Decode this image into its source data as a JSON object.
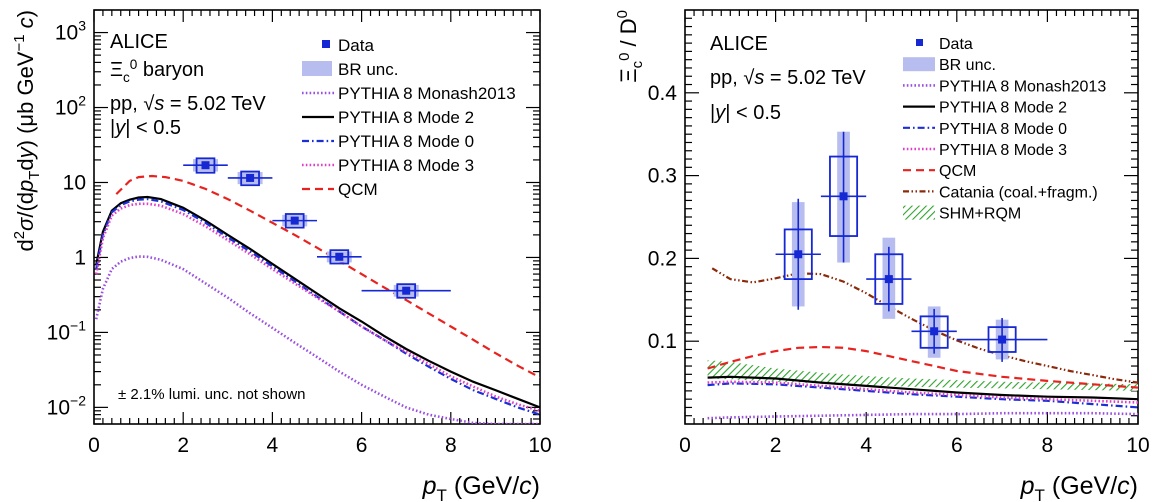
{
  "chart_data": [
    {
      "type": "scatter",
      "log_y": true,
      "xlim": [
        0,
        10
      ],
      "ylim": [
        0.006,
        2000
      ],
      "x_ticks": [
        0,
        2,
        4,
        6,
        8,
        10
      ],
      "y_ticks": [
        {
          "value": 0.01,
          "base": "10",
          "exp": "−2"
        },
        {
          "value": 0.1,
          "base": "10",
          "exp": "−1"
        },
        {
          "value": 1,
          "base": "1",
          "exp": ""
        },
        {
          "value": 10,
          "base": "10",
          "exp": ""
        },
        {
          "value": 100,
          "base": "10",
          "exp": "2"
        },
        {
          "value": 1000,
          "base": "10",
          "exp": "3"
        }
      ],
      "xlabel": "p_T (GeV/c)",
      "ylabel": "d²σ/(dp_T dy) (μb GeV⁻¹ c)",
      "info_lines": [
        "ALICE",
        "Ξc0 baryon",
        "pp, √s = 5.02 TeV",
        "|y| < 0.5"
      ],
      "note": "± 2.1% lumi. unc. not shown",
      "legend": [
        "Data",
        "BR unc.",
        "PYTHIA 8 Monash2013",
        "PYTHIA 8 Mode 2",
        "PYTHIA 8 Mode 0",
        "PYTHIA 8 Mode 3",
        "QCM"
      ],
      "legend_position": "top-right",
      "data_points": {
        "x": [
          2.5,
          3.5,
          4.5,
          5.5,
          7.0
        ],
        "x_err": [
          0.5,
          0.5,
          0.5,
          0.5,
          1.0
        ],
        "y": [
          17,
          11.5,
          3.1,
          1.02,
          0.36
        ],
        "syst_low": [
          13.5,
          9.2,
          2.5,
          0.83,
          0.29
        ],
        "syst_high": [
          21,
          14,
          3.8,
          1.25,
          0.44
        ],
        "br_low": [
          14,
          9.5,
          2.6,
          0.86,
          0.3
        ],
        "br_high": [
          20.5,
          13.8,
          3.7,
          1.2,
          0.43
        ]
      },
      "series": [
        {
          "name": "QCM",
          "color": "#e8221f",
          "style": "dashed",
          "x": [
            0.5,
            0.8,
            1.0,
            1.3,
            1.6,
            2.0,
            2.5,
            3.0,
            3.5,
            4.0,
            4.5,
            5.0,
            5.5,
            6.0,
            6.5,
            7.0,
            7.5,
            8.0,
            8.5,
            9.0,
            9.5,
            10.0
          ],
          "y": [
            7,
            10.5,
            11.8,
            12.2,
            11.8,
            10.5,
            8.2,
            6.0,
            4.2,
            2.9,
            2.0,
            1.35,
            0.9,
            0.6,
            0.4,
            0.27,
            0.18,
            0.12,
            0.08,
            0.053,
            0.036,
            0.025
          ]
        },
        {
          "name": "PYTHIA 8 Mode 2",
          "color": "#000000",
          "style": "solid",
          "x": [
            0.05,
            0.2,
            0.4,
            0.6,
            0.8,
            1.0,
            1.2,
            1.5,
            2.0,
            2.5,
            3.0,
            3.5,
            4.0,
            4.5,
            5.0,
            5.5,
            6.0,
            6.5,
            7.0,
            7.5,
            8.0,
            8.5,
            9.0,
            9.5,
            10.0
          ],
          "y": [
            0.8,
            2.2,
            4.2,
            5.3,
            5.9,
            6.3,
            6.4,
            6.0,
            4.6,
            3.1,
            2.0,
            1.3,
            0.82,
            0.52,
            0.33,
            0.21,
            0.14,
            0.09,
            0.06,
            0.042,
            0.03,
            0.022,
            0.017,
            0.013,
            0.01
          ]
        },
        {
          "name": "PYTHIA 8 Mode 0",
          "color": "#1a2fd6",
          "style": "dashdot",
          "x": [
            0.05,
            0.2,
            0.4,
            0.6,
            0.8,
            1.0,
            1.2,
            1.5,
            2.0,
            2.5,
            3.0,
            3.5,
            4.0,
            4.5,
            5.0,
            5.5,
            6.0,
            6.5,
            7.0,
            7.5,
            8.0,
            8.5,
            9.0,
            9.5,
            10.0
          ],
          "y": [
            0.7,
            2.0,
            4.0,
            5.0,
            5.6,
            5.9,
            6.0,
            5.6,
            4.3,
            2.9,
            1.85,
            1.2,
            0.76,
            0.48,
            0.3,
            0.19,
            0.12,
            0.08,
            0.052,
            0.035,
            0.024,
            0.017,
            0.013,
            0.01,
            0.008
          ]
        },
        {
          "name": "PYTHIA 8 Mode 3",
          "color": "#e040c8",
          "style": "dotted",
          "x": [
            0.05,
            0.2,
            0.4,
            0.6,
            0.8,
            1.0,
            1.2,
            1.5,
            2.0,
            2.5,
            3.0,
            3.5,
            4.0,
            4.5,
            5.0,
            5.5,
            6.0,
            6.5,
            7.0,
            7.5,
            8.0,
            8.5,
            9.0,
            9.5,
            10.0
          ],
          "y": [
            0.6,
            1.8,
            3.6,
            4.5,
            5.0,
            5.2,
            5.2,
            4.9,
            3.8,
            2.6,
            1.7,
            1.1,
            0.7,
            0.45,
            0.29,
            0.19,
            0.12,
            0.08,
            0.055,
            0.038,
            0.026,
            0.019,
            0.014,
            0.011,
            0.009
          ]
        },
        {
          "name": "PYTHIA 8 Monash2013",
          "color": "#9b50e0",
          "style": "dotted",
          "x": [
            0.05,
            0.2,
            0.4,
            0.6,
            0.8,
            1.0,
            1.2,
            1.5,
            2.0,
            2.5,
            3.0,
            3.5,
            4.0,
            4.5,
            5.0,
            5.5,
            6.0,
            6.5,
            7.0,
            7.5,
            8.0,
            8.5,
            9.0,
            9.5,
            10.0
          ],
          "y": [
            0.15,
            0.38,
            0.7,
            0.88,
            0.98,
            1.03,
            1.02,
            0.93,
            0.7,
            0.45,
            0.29,
            0.18,
            0.115,
            0.073,
            0.047,
            0.03,
            0.02,
            0.014,
            0.01,
            0.008,
            0.007,
            0.0062,
            0.006,
            0.006,
            0.006
          ]
        }
      ]
    },
    {
      "type": "scatter",
      "log_y": false,
      "xlim": [
        0,
        10
      ],
      "ylim": [
        0,
        0.5
      ],
      "x_ticks": [
        0,
        2,
        4,
        6,
        8,
        10
      ],
      "y_ticks": [
        0.1,
        0.2,
        0.3,
        0.4
      ],
      "xlabel": "p_T (GeV/c)",
      "ylabel": "Ξc0 / D0",
      "info_lines": [
        "ALICE",
        "pp, √s = 5.02 TeV",
        "|y| < 0.5"
      ],
      "legend": [
        "Data",
        "BR unc.",
        "PYTHIA 8 Monash2013",
        "PYTHIA 8 Mode 2",
        "PYTHIA 8 Mode 0",
        "PYTHIA 8 Mode 3",
        "QCM",
        "Catania (coal.+fragm.)",
        "SHM+RQM"
      ],
      "legend_position": "top-right",
      "data_points": {
        "x": [
          2.5,
          3.5,
          4.5,
          5.5,
          7.0
        ],
        "x_err": [
          0.5,
          0.5,
          0.5,
          0.5,
          1.0
        ],
        "y": [
          0.205,
          0.275,
          0.175,
          0.112,
          0.102
        ],
        "stat_low": [
          0.138,
          0.195,
          0.136,
          0.085,
          0.075
        ],
        "stat_high": [
          0.272,
          0.353,
          0.214,
          0.139,
          0.128
        ],
        "syst_low": [
          0.175,
          0.227,
          0.145,
          0.092,
          0.087
        ],
        "syst_high": [
          0.235,
          0.323,
          0.205,
          0.13,
          0.117
        ],
        "br_low": [
          0.142,
          0.195,
          0.127,
          0.08,
          0.078
        ],
        "br_high": [
          0.268,
          0.353,
          0.225,
          0.142,
          0.126
        ]
      },
      "shm_band": {
        "name": "SHM+RQM",
        "color": "#2ca32c",
        "x": [
          0.5,
          1,
          2,
          3,
          4,
          5,
          6,
          7,
          8,
          9,
          10
        ],
        "low": [
          0.055,
          0.054,
          0.051,
          0.049,
          0.047,
          0.045,
          0.044,
          0.043,
          0.042,
          0.041,
          0.04
        ],
        "high": [
          0.077,
          0.075,
          0.067,
          0.062,
          0.058,
          0.055,
          0.053,
          0.051,
          0.05,
          0.049,
          0.048
        ]
      },
      "series": [
        {
          "name": "Catania (coal.+fragm.)",
          "color": "#8b2a0a",
          "style": "dashdotdot",
          "x": [
            0.6,
            1.0,
            1.5,
            2.0,
            2.5,
            3.0,
            3.5,
            4.0,
            4.5,
            5.0,
            5.5,
            6.0,
            6.5,
            7.0,
            7.5,
            8.0,
            8.5,
            9.0,
            9.5,
            10.0
          ],
          "y": [
            0.188,
            0.175,
            0.171,
            0.176,
            0.182,
            0.181,
            0.172,
            0.158,
            0.142,
            0.127,
            0.113,
            0.101,
            0.091,
            0.083,
            0.076,
            0.07,
            0.064,
            0.059,
            0.054,
            0.05
          ]
        },
        {
          "name": "QCM",
          "color": "#e8221f",
          "style": "dashed",
          "x": [
            0.5,
            1.0,
            1.5,
            2.0,
            2.5,
            3.0,
            3.5,
            4.0,
            4.5,
            5.0,
            5.5,
            6.0,
            7.0,
            8.0,
            9.0,
            10.0
          ],
          "y": [
            0.067,
            0.075,
            0.082,
            0.088,
            0.092,
            0.093,
            0.092,
            0.088,
            0.082,
            0.076,
            0.07,
            0.064,
            0.057,
            0.052,
            0.048,
            0.044
          ]
        },
        {
          "name": "PYTHIA 8 Mode 2",
          "color": "#000000",
          "style": "solid",
          "x": [
            0.5,
            1.0,
            2.0,
            3.0,
            4.0,
            5.0,
            6.0,
            7.0,
            8.0,
            9.0,
            10.0
          ],
          "y": [
            0.056,
            0.057,
            0.055,
            0.05,
            0.046,
            0.042,
            0.038,
            0.035,
            0.033,
            0.032,
            0.03
          ]
        },
        {
          "name": "PYTHIA 8 Mode 0",
          "color": "#1a2fd6",
          "style": "dashdot",
          "x": [
            0.5,
            1.0,
            2.0,
            3.0,
            4.0,
            5.0,
            6.0,
            7.0,
            8.0,
            9.0,
            10.0
          ],
          "y": [
            0.047,
            0.049,
            0.048,
            0.044,
            0.04,
            0.036,
            0.033,
            0.03,
            0.028,
            0.024,
            0.02
          ]
        },
        {
          "name": "PYTHIA 8 Mode 3",
          "color": "#e040c8",
          "style": "dotted",
          "x": [
            0.5,
            1.0,
            2.0,
            3.0,
            4.0,
            5.0,
            6.0,
            7.0,
            8.0,
            9.0,
            10.0
          ],
          "y": [
            0.05,
            0.051,
            0.05,
            0.046,
            0.042,
            0.038,
            0.035,
            0.032,
            0.03,
            0.028,
            0.026
          ]
        },
        {
          "name": "PYTHIA 8 Monash2013",
          "color": "#9b50e0",
          "style": "dotted",
          "x": [
            0.5,
            1.0,
            2.0,
            3.0,
            4.0,
            5.0,
            6.0,
            7.0,
            8.0,
            9.0,
            10.0
          ],
          "y": [
            0.007,
            0.008,
            0.009,
            0.01,
            0.011,
            0.012,
            0.012,
            0.013,
            0.013,
            0.013,
            0.012
          ]
        }
      ]
    }
  ]
}
